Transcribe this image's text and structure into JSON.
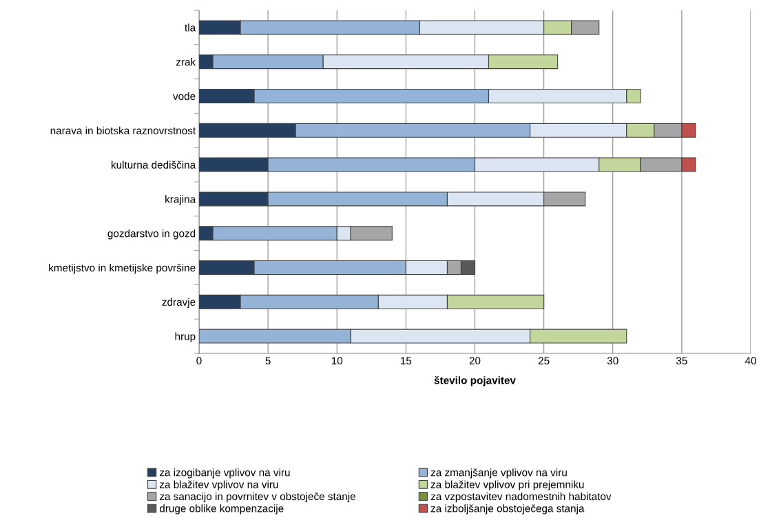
{
  "chart_data": {
    "type": "bar",
    "orientation": "horizontal",
    "stacked": true,
    "xlabel": "število pojavitev",
    "categories": [
      "tla",
      "zrak",
      "vode",
      "narava in biotska raznovrstnost",
      "kulturna dediščina",
      "krajina",
      "gozdarstvo in gozd",
      "kmetijstvo in kmetijske površine",
      "zdravje",
      "hrup"
    ],
    "series": [
      {
        "name": "za izogibanje vplivov na viru",
        "color": "#243f60",
        "values": [
          3,
          1,
          4,
          7,
          5,
          5,
          1,
          4,
          3,
          0
        ]
      },
      {
        "name": "za zmanjšanje vplivov na viru",
        "color": "#95b3d7",
        "values": [
          13,
          8,
          17,
          17,
          15,
          13,
          9,
          11,
          10,
          11
        ]
      },
      {
        "name": "za blažitev vplivov na viru",
        "color": "#dce6f2",
        "values": [
          9,
          12,
          10,
          7,
          9,
          7,
          1,
          3,
          5,
          13
        ]
      },
      {
        "name": "za blažitev vplivov pri prejemniku",
        "color": "#c3d69b",
        "values": [
          2,
          5,
          1,
          2,
          3,
          0,
          0,
          0,
          7,
          7
        ]
      },
      {
        "name": "za sanacijo in povrnitev v obstoječe stanje",
        "color": "#a6a6a6",
        "values": [
          2,
          0,
          0,
          2,
          3,
          3,
          3,
          1,
          0,
          0
        ]
      },
      {
        "name": "za vzpostavitev nadomestnih habitatov",
        "color": "#77933c",
        "values": [
          0,
          0,
          0,
          0,
          0,
          0,
          0,
          0,
          0,
          0
        ]
      },
      {
        "name": "druge oblike kompenzacije",
        "color": "#595959",
        "values": [
          0,
          0,
          0,
          0,
          0,
          0,
          0,
          1,
          0,
          0
        ]
      },
      {
        "name": "za izboljšanje obstoječega stanja",
        "color": "#c0504d",
        "values": [
          0,
          0,
          0,
          1,
          1,
          0,
          0,
          0,
          0,
          0
        ]
      }
    ],
    "xlim": [
      0,
      40
    ],
    "xticks": [
      0,
      5,
      10,
      15,
      20,
      25,
      30,
      35,
      40
    ],
    "grid": "x",
    "legend": "bottom"
  }
}
